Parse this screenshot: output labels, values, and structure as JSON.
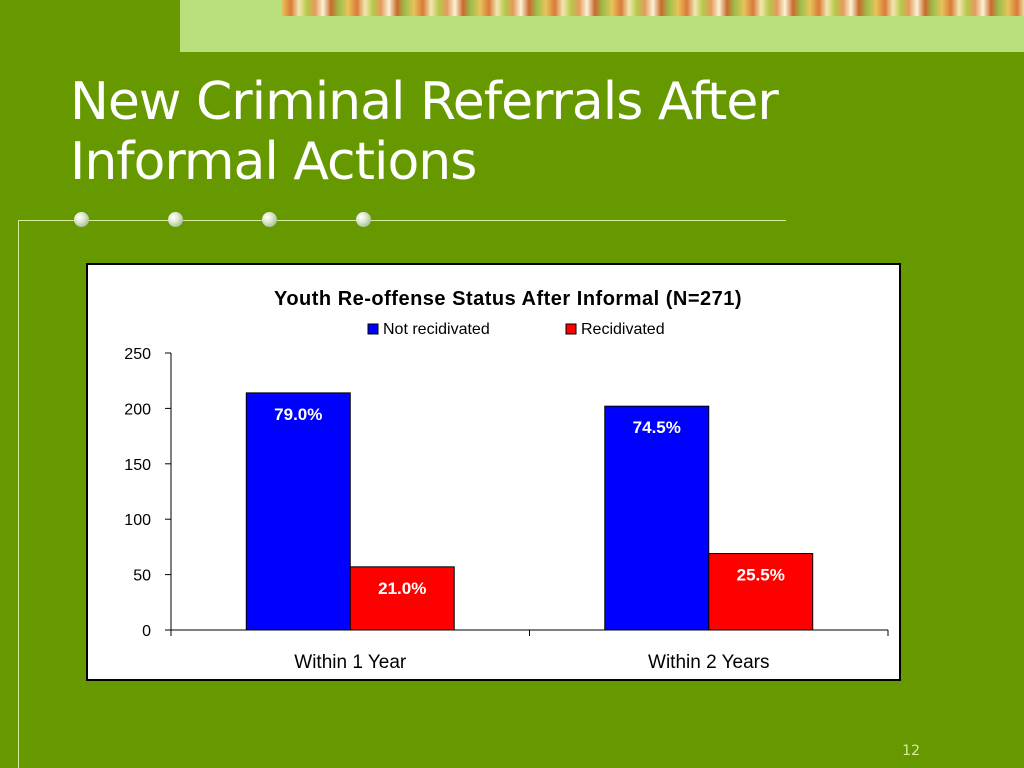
{
  "slide": {
    "title_line1": "New Criminal Referrals After",
    "title_line2": "Informal Actions",
    "page_number": "12"
  },
  "colors": {
    "background": "#669900",
    "not_recidivated": "#0000ff",
    "recidivated": "#ff0000"
  },
  "chart_data": {
    "type": "bar",
    "title": "Youth Re-offense Status After Informal (N=271)",
    "xlabel": "",
    "ylabel": "",
    "categories": [
      "Within 1 Year",
      "Within 2 Years"
    ],
    "series": [
      {
        "name": "Not recidivated",
        "values": [
          214,
          202
        ],
        "labels": [
          "79.0%",
          "74.5%"
        ]
      },
      {
        "name": "Recidivated",
        "values": [
          57,
          69
        ],
        "labels": [
          "21.0%",
          "25.5%"
        ]
      }
    ],
    "ylim": [
      0,
      250
    ],
    "yticks": [
      0,
      50,
      100,
      150,
      200,
      250
    ],
    "legend": "top",
    "grid": false
  }
}
